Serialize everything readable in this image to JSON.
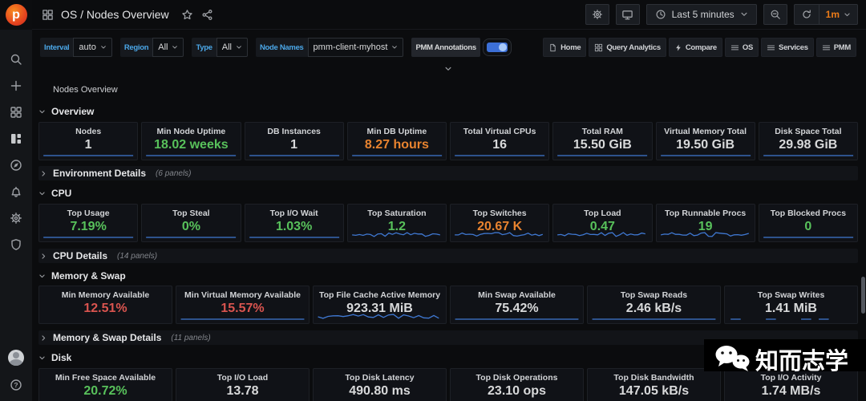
{
  "header": {
    "logo_text": "p",
    "title": "OS / Nodes Overview",
    "time_range": "Last 5 minutes",
    "refresh_interval": "1m"
  },
  "filters": [
    {
      "label": "Interval",
      "value": "auto"
    },
    {
      "label": "Region",
      "value": "All"
    },
    {
      "label": "Type",
      "value": "All"
    },
    {
      "label": "Node Names",
      "value": "pmm-client-myhost"
    }
  ],
  "annotations": {
    "label": "PMM Annotations",
    "enabled": true
  },
  "nav": [
    {
      "label": "Home",
      "icon": "file-icon"
    },
    {
      "label": "Query Analytics",
      "icon": "apps-icon"
    },
    {
      "label": "Compare",
      "icon": "bolt-icon"
    },
    {
      "label": "OS",
      "icon": "menu-icon"
    },
    {
      "label": "Services",
      "icon": "menu-icon"
    },
    {
      "label": "PMM",
      "icon": "menu-icon"
    }
  ],
  "breadcrumb": "Nodes Overview",
  "colors": {
    "white": "#d8d9da",
    "green": "#58c15b",
    "orange": "#e8832f",
    "red": "#d9544f",
    "spark_blue": "#3f78d2",
    "label_blue": "#4ba7e8",
    "refresh_orange": "#eb7b18"
  },
  "sidebar_icons": [
    "search",
    "add",
    "apps",
    "dashboards",
    "explore",
    "alerting",
    "settings",
    "security"
  ],
  "sections": [
    {
      "title": "Overview",
      "expanded": true,
      "cols": 8,
      "panels": [
        {
          "title": "Nodes",
          "value": "1",
          "color": "white",
          "spark": "flat"
        },
        {
          "title": "Min Node Uptime",
          "value": "18.02 weeks",
          "color": "green",
          "spark": "flat"
        },
        {
          "title": "DB Instances",
          "value": "1",
          "color": "white",
          "spark": "flat"
        },
        {
          "title": "Min DB Uptime",
          "value": "8.27 hours",
          "color": "orange",
          "spark": "flat"
        },
        {
          "title": "Total Virtual CPUs",
          "value": "16",
          "color": "white",
          "spark": "flat"
        },
        {
          "title": "Total RAM",
          "value": "15.50 GiB",
          "color": "white",
          "spark": "flat"
        },
        {
          "title": "Virtual Memory Total",
          "value": "19.50 GiB",
          "color": "white",
          "spark": "flat"
        },
        {
          "title": "Disk Space Total",
          "value": "29.98 GiB",
          "color": "white",
          "spark": "flat"
        }
      ]
    },
    {
      "title": "Environment Details",
      "expanded": false,
      "count": "(6 panels)"
    },
    {
      "title": "CPU",
      "expanded": true,
      "cols": 8,
      "panels": [
        {
          "title": "Top Usage",
          "value": "7.19%",
          "color": "green",
          "spark": "flat"
        },
        {
          "title": "Top Steal",
          "value": "0%",
          "color": "green",
          "spark": "flat"
        },
        {
          "title": "Top I/O Wait",
          "value": "1.03%",
          "color": "green",
          "spark": "flat"
        },
        {
          "title": "Top Saturation",
          "value": "1.2",
          "color": "green",
          "spark": "wavy"
        },
        {
          "title": "Top Switches",
          "value": "20.67 K",
          "color": "orange",
          "spark": "wavy"
        },
        {
          "title": "Top Load",
          "value": "0.47",
          "color": "green",
          "spark": "wavy"
        },
        {
          "title": "Top Runnable Procs",
          "value": "19",
          "color": "green",
          "spark": "wavy"
        },
        {
          "title": "Top Blocked Procs",
          "value": "0",
          "color": "green",
          "spark": "flat"
        }
      ]
    },
    {
      "title": "CPU Details",
      "expanded": false,
      "count": "(14 panels)"
    },
    {
      "title": "Memory & Swap",
      "expanded": true,
      "cols": 6,
      "panels": [
        {
          "title": "Min Memory Available",
          "value": "12.51%",
          "color": "red",
          "spark": "none"
        },
        {
          "title": "Min Virtual Memory Available",
          "value": "15.57%",
          "color": "red",
          "spark": "flat"
        },
        {
          "title": "Top File Cache Active Memory",
          "value": "923.31 MiB",
          "color": "white",
          "spark": "wavy"
        },
        {
          "title": "Min Swap Available",
          "value": "75.42%",
          "color": "white",
          "spark": "flat"
        },
        {
          "title": "Top Swap Reads",
          "value": "2.46 kB/s",
          "color": "white",
          "spark": "flat"
        },
        {
          "title": "Top Swap Writes",
          "value": "1.41 MiB",
          "color": "white",
          "spark": "dashes"
        }
      ]
    },
    {
      "title": "Memory & Swap Details",
      "expanded": false,
      "count": "(11 panels)"
    },
    {
      "title": "Disk",
      "expanded": true,
      "cols": 6,
      "panels": [
        {
          "title": "Min Free Space Available",
          "value": "20.72%",
          "color": "green",
          "spark": "flat"
        },
        {
          "title": "Top I/O Load",
          "value": "13.78",
          "color": "white",
          "spark": "dashes"
        },
        {
          "title": "Top Disk Latency",
          "value": "490.80 ms",
          "color": "white",
          "spark": "dashes"
        },
        {
          "title": "Top Disk Operations",
          "value": "23.10 ops",
          "color": "white",
          "spark": "dashes"
        },
        {
          "title": "Top Disk Bandwidth",
          "value": "147.05 kB/s",
          "color": "white",
          "spark": "dashes"
        },
        {
          "title": "Top I/O Activity",
          "value": "1.74 MB/s",
          "color": "white",
          "spark": "dashes"
        }
      ]
    }
  ],
  "watermark": {
    "text": "知而志学",
    "logo": "wechat-icon"
  }
}
